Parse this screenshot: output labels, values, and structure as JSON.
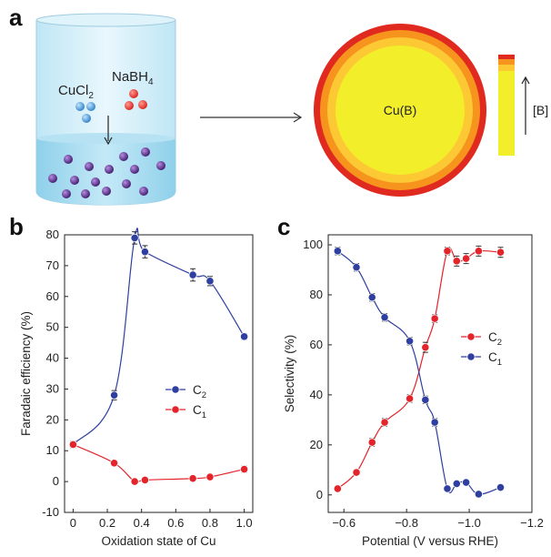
{
  "panels": {
    "a": "a",
    "b": "b",
    "c": "c"
  },
  "schematic": {
    "reagent_1": "CuCl",
    "reagent_1_sub": "2",
    "reagent_2": "NaBH",
    "reagent_2_sub": "4",
    "particle_label": "Cu(B)",
    "gradient_label": "[B]",
    "colors": {
      "beaker_liquid": "#a9dcef",
      "cu_spheres": "#3a8fd2",
      "b_spheres": "#e8322a",
      "product_spheres": "#5b2c8a",
      "shell_outer": "#e02a20",
      "shell_mid": "#f7941d",
      "shell_inner": "#fcc833",
      "core": "#f2ef2a"
    }
  },
  "chart_data": [
    {
      "id": "b",
      "type": "line",
      "xlabel": "Oxidation state of Cu",
      "ylabel": "Faradaic efficiency (%)",
      "xlim": [
        -0.05,
        1.05
      ],
      "ylim": [
        -10,
        80
      ],
      "xticks": [
        "0",
        "0.2",
        "0.4",
        "0.6",
        "0.8",
        "1.0"
      ],
      "xtick_values": [
        0,
        0.2,
        0.4,
        0.6,
        0.8,
        1.0
      ],
      "yticks": [
        "-10",
        "0",
        "10",
        "20",
        "30",
        "40",
        "50",
        "60",
        "70",
        "80"
      ],
      "ytick_values": [
        -10,
        0,
        10,
        20,
        30,
        40,
        50,
        60,
        70,
        80
      ],
      "legend_position": "center-right",
      "series": [
        {
          "name": "C",
          "sub": "2",
          "color": "#2f3fa0",
          "x": [
            0,
            0.24,
            0.36,
            0.42,
            0.7,
            0.8,
            1.0
          ],
          "y": [
            12,
            28,
            79,
            74.5,
            67,
            65,
            47
          ],
          "err": [
            1,
            1.5,
            2,
            2,
            2,
            1.5,
            1
          ]
        },
        {
          "name": "C",
          "sub": "1",
          "color": "#e3242b",
          "x": [
            0,
            0.24,
            0.36,
            0.42,
            0.7,
            0.8,
            1.0
          ],
          "y": [
            12,
            6,
            0,
            0.5,
            1,
            1.5,
            4
          ],
          "err": [
            1,
            0.5,
            0.5,
            0.5,
            0.5,
            0.5,
            1
          ]
        }
      ]
    },
    {
      "id": "c",
      "type": "line",
      "xlabel": "Potential (V versus RHE)",
      "ylabel": "Selectivity (%)",
      "xlim": [
        -0.55,
        -1.2
      ],
      "ylim": [
        -7,
        104
      ],
      "xticks": [
        "−0.6",
        "−0.8",
        "−1.0",
        "−1.2"
      ],
      "xtick_values": [
        -0.6,
        -0.8,
        -1.0,
        -1.2
      ],
      "yticks": [
        "0",
        "20",
        "40",
        "60",
        "80",
        "100"
      ],
      "ytick_values": [
        0,
        20,
        40,
        60,
        80,
        100
      ],
      "legend_position": "center-right",
      "series": [
        {
          "name": "C",
          "sub": "2",
          "color": "#e3242b",
          "x": [
            -0.58,
            -0.64,
            -0.69,
            -0.73,
            -0.81,
            -0.86,
            -0.89,
            -0.93,
            -0.96,
            -0.99,
            -1.03,
            -1.1
          ],
          "y": [
            2.5,
            9,
            21,
            29,
            38.5,
            59,
            70.5,
            97.5,
            93.5,
            94.5,
            97.5,
            97
          ],
          "err": [
            1,
            1,
            1.5,
            1.5,
            1.5,
            2,
            1.5,
            1.5,
            2,
            2,
            2,
            2
          ]
        },
        {
          "name": "C",
          "sub": "1",
          "color": "#2f3fa0",
          "x": [
            -0.58,
            -0.64,
            -0.69,
            -0.73,
            -0.81,
            -0.86,
            -0.89,
            -0.93,
            -0.96,
            -0.99,
            -1.03,
            -1.1
          ],
          "y": [
            97.5,
            91,
            79,
            71,
            61.5,
            38,
            29,
            2.5,
            4.5,
            5,
            0.3,
            3
          ],
          "err": [
            1.5,
            1.5,
            1.5,
            1.5,
            1.5,
            1.5,
            1.5,
            1,
            1,
            1,
            1,
            1
          ]
        }
      ]
    }
  ]
}
